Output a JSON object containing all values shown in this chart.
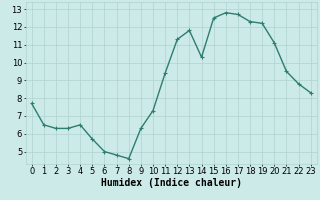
{
  "x": [
    0,
    1,
    2,
    3,
    4,
    5,
    6,
    7,
    8,
    9,
    10,
    11,
    12,
    13,
    14,
    15,
    16,
    17,
    18,
    19,
    20,
    21,
    22,
    23
  ],
  "y": [
    7.7,
    6.5,
    6.3,
    6.3,
    6.5,
    5.7,
    5.0,
    4.8,
    4.6,
    6.3,
    7.3,
    9.4,
    11.3,
    11.8,
    10.3,
    12.5,
    12.8,
    12.7,
    12.3,
    12.2,
    11.1,
    9.5,
    8.8,
    8.3
  ],
  "line_color": "#2e7d6e",
  "marker": "+",
  "marker_size": 3,
  "line_width": 1.0,
  "bg_color": "#cceae7",
  "grid_color": "#aed4d0",
  "xlabel": "Humidex (Indice chaleur)",
  "xlabel_fontsize": 7,
  "tick_fontsize": 6,
  "ylim": [
    4.3,
    13.4
  ],
  "xlim": [
    -0.5,
    23.5
  ],
  "yticks": [
    5,
    6,
    7,
    8,
    9,
    10,
    11,
    12,
    13
  ],
  "xticks": [
    0,
    1,
    2,
    3,
    4,
    5,
    6,
    7,
    8,
    9,
    10,
    11,
    12,
    13,
    14,
    15,
    16,
    17,
    18,
    19,
    20,
    21,
    22,
    23
  ]
}
